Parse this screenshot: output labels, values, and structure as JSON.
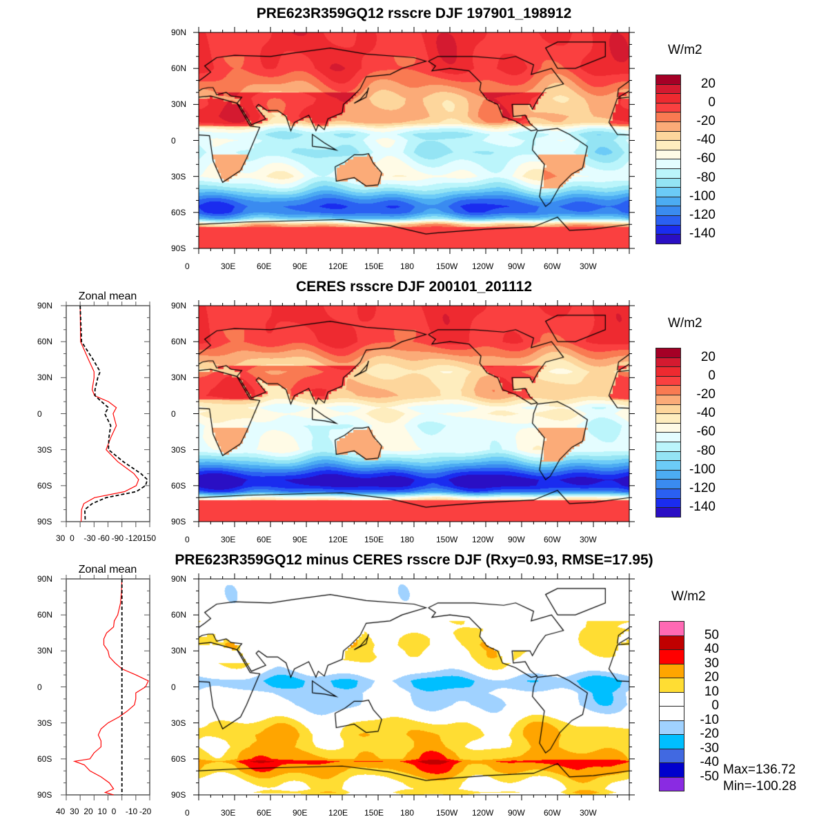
{
  "titles": {
    "top": "PRE623R359GQ12 rsscre DJF 197901_198912",
    "middle": "CERES rsscre DJF 200101_201112",
    "bottom": "PRE623R359GQ12 minus CERES rsscre DJF (Rxy=0.93, RMSE=17.95)"
  },
  "lat_labels": [
    "90N",
    "60N",
    "30N",
    "0",
    "30S",
    "60S",
    "90S"
  ],
  "lon_labels": [
    "0",
    "30E",
    "60E",
    "90E",
    "120E",
    "150E",
    "180",
    "150W",
    "120W",
    "90W",
    "60W",
    "30W"
  ],
  "colorbar_field": {
    "unit": "W/m2",
    "labels": [
      "20",
      "0",
      "-20",
      "-40",
      "-60",
      "-80",
      "-100",
      "-120",
      "-140"
    ],
    "levels": [
      20,
      10,
      0,
      -10,
      -20,
      -30,
      -40,
      -50,
      -60,
      -70,
      -80,
      -90,
      -100,
      -110,
      -120,
      -130,
      -140
    ],
    "colors": [
      "#a50026",
      "#d41a30",
      "#ee2a30",
      "#fa4040",
      "#f97a52",
      "#fbab78",
      "#fdd69c",
      "#feedbe",
      "#fffbe6",
      "#e4fdff",
      "#bbf5fb",
      "#94e4f4",
      "#6ccbf7",
      "#4cacf2",
      "#3a8bf0",
      "#2a60f2",
      "#1a2cef",
      "#2a0fc4"
    ]
  },
  "colorbar_diff": {
    "unit": "W/m2",
    "labels": [
      "50",
      "40",
      "30",
      "20",
      "10",
      "0",
      "-10",
      "-20",
      "-30",
      "-40",
      "-50"
    ],
    "levels": [
      50,
      40,
      30,
      20,
      10,
      0,
      -10,
      -20,
      -30,
      -40,
      -50
    ],
    "colors": [
      "#ff69b4",
      "#c00000",
      "#ff0000",
      "#ffa500",
      "#ffdd33",
      "#ffffff",
      "#ffffff",
      "#a0d2ff",
      "#00bfff",
      "#4169e1",
      "#0000cd",
      "#8a2be2"
    ]
  },
  "stats": {
    "max": "Max=136.72",
    "min": "Min=-100.28"
  },
  "chart_data": [
    {
      "type": "line",
      "title": "Zonal mean",
      "xlabel": "",
      "ylabel": "",
      "xlim": [
        30,
        -150
      ],
      "ylim": [
        -90,
        90
      ],
      "x_tick_labels": [
        "30",
        "0",
        "-30",
        "-60",
        "-90",
        "-120",
        "-150"
      ],
      "x_ticks": [
        30,
        0,
        -30,
        -60,
        -90,
        -120,
        -150
      ],
      "y_tick_labels": [
        "90N",
        "60N",
        "30N",
        "0",
        "30S",
        "60S",
        "90S"
      ],
      "lat": [
        90,
        60,
        45,
        35,
        30,
        20,
        15,
        10,
        5,
        0,
        -10,
        -20,
        -30,
        -40,
        -50,
        -55,
        -60,
        -65,
        -70,
        -75,
        -80,
        -90
      ],
      "series": [
        {
          "name": "PRE623R359GQ12",
          "color": "#ff0000",
          "style": "solid",
          "values": [
            0,
            -1,
            -18,
            -30,
            -30,
            -26,
            -31,
            -61,
            -78,
            -71,
            -78,
            -66,
            -56,
            -81,
            -116,
            -126,
            -121,
            -96,
            -31,
            -8,
            -3,
            -2
          ]
        },
        {
          "name": "CERES",
          "color": "#000000",
          "style": "dashed",
          "values": [
            0,
            -3,
            -28,
            -43,
            -38,
            -32,
            -32,
            -46,
            -61,
            -53,
            -66,
            -62,
            -61,
            -93,
            -131,
            -145,
            -141,
            -121,
            -56,
            -26,
            -10,
            -11
          ]
        }
      ]
    },
    {
      "type": "line",
      "title": "Zonal mean",
      "xlabel": "",
      "ylabel": "",
      "xlim": [
        40,
        -20
      ],
      "ylim": [
        -90,
        90
      ],
      "x_tick_labels": [
        "40",
        "30",
        "20",
        "10",
        "0",
        "-10",
        "-20"
      ],
      "x_ticks": [
        40,
        30,
        20,
        10,
        0,
        -10,
        -20
      ],
      "y_tick_labels": [
        "90N",
        "60N",
        "30N",
        "0",
        "30S",
        "60S",
        "90S"
      ],
      "lat": [
        90,
        80,
        70,
        60,
        55,
        50,
        45,
        40,
        35,
        30,
        25,
        20,
        15,
        10,
        5,
        0,
        -5,
        -10,
        -15,
        -20,
        -25,
        -30,
        -35,
        -40,
        -45,
        -50,
        -55,
        -60,
        -62,
        -65,
        -70,
        -75,
        -80,
        -85,
        -88,
        -90
      ],
      "series": [
        {
          "name": "PRE623R359GQ12 minus CERES",
          "color": "#ff0000",
          "style": "solid",
          "values": [
            0,
            0.3,
            1,
            3,
            5.5,
            6,
            11,
            13,
            13,
            10,
            9,
            5,
            0,
            -10,
            -19,
            -17,
            -10,
            -10,
            -9,
            -4,
            2,
            10,
            15,
            17,
            15,
            15,
            20,
            23,
            34,
            27,
            23,
            15,
            9,
            6,
            12,
            6
          ]
        },
        {
          "name": "zero",
          "color": "#000000",
          "style": "dashed",
          "values": [
            0,
            0,
            0,
            0,
            0,
            0,
            0,
            0,
            0,
            0,
            0,
            0,
            0,
            0,
            0,
            0,
            0,
            0,
            0,
            0,
            0,
            0,
            0,
            0,
            0,
            0,
            0,
            0,
            0,
            0,
            0,
            0,
            0,
            0,
            0,
            0
          ]
        }
      ]
    }
  ]
}
